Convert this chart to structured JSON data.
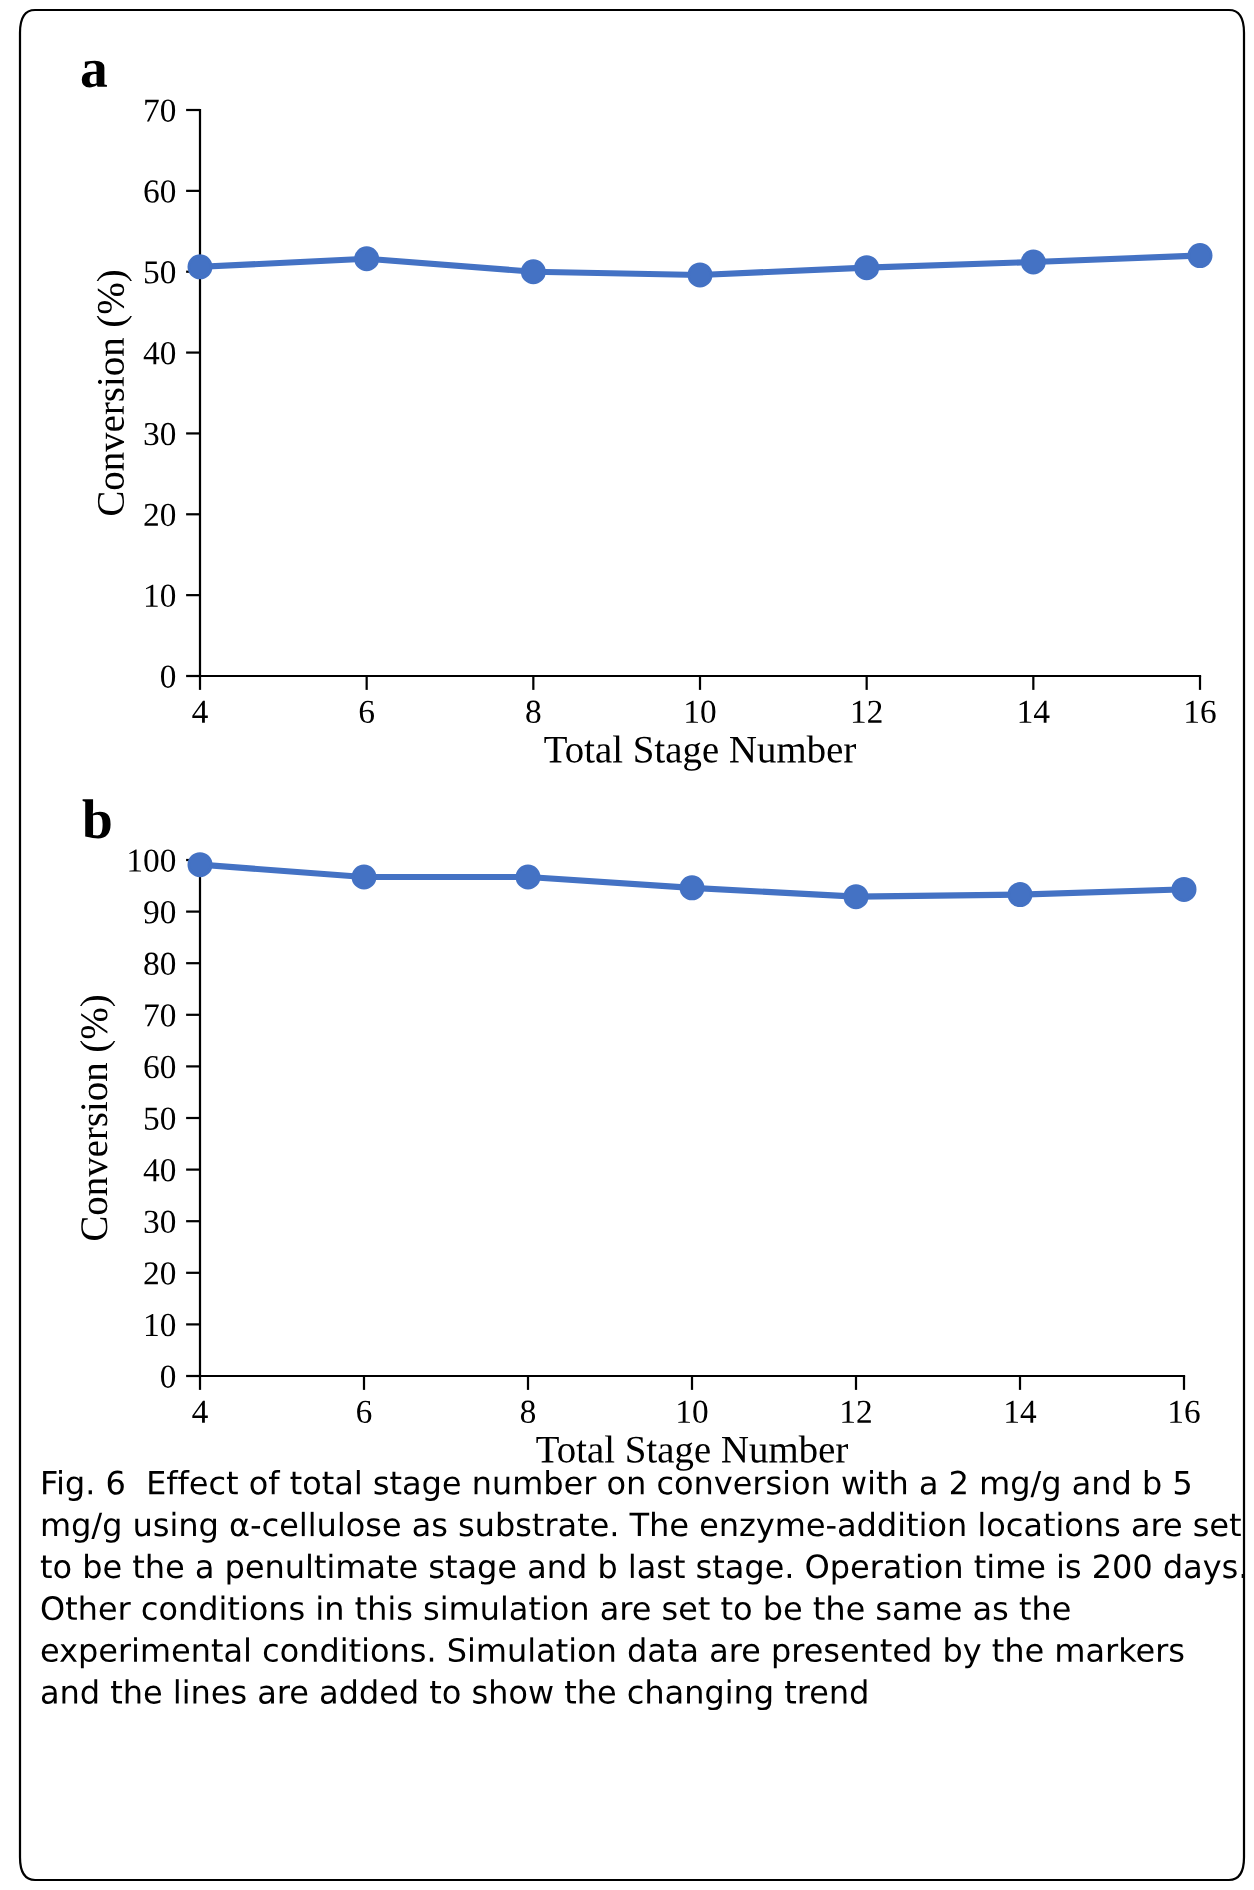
{
  "chart_data": [
    {
      "type": "line",
      "title": "a",
      "xlabel": "Total Stage Number",
      "ylabel": "Conversion (%)",
      "x": [
        4,
        6,
        8,
        10,
        12,
        14,
        16
      ],
      "series": [
        {
          "color": "#4472c4",
          "values": [
            50.6,
            51.6,
            50.0,
            49.6,
            50.5,
            51.2,
            52.0
          ]
        }
      ],
      "xlim": [
        4,
        16
      ],
      "xticks": [
        4,
        6,
        8,
        10,
        12,
        14,
        16
      ],
      "ylim": [
        0,
        70
      ],
      "yticks": [
        0,
        10,
        20,
        30,
        40,
        50,
        60,
        70
      ],
      "marker": "circle",
      "line_style": "solid",
      "grid": false,
      "legend": false
    },
    {
      "type": "line",
      "title": "b",
      "xlabel": "Total Stage Number",
      "ylabel": "Conversion (%)",
      "x": [
        4,
        6,
        8,
        10,
        12,
        14,
        16
      ],
      "series": [
        {
          "color": "#4472c4",
          "values": [
            99.1,
            96.7,
            96.7,
            94.6,
            92.9,
            93.3,
            94.3
          ]
        }
      ],
      "xlim": [
        4,
        16
      ],
      "xticks": [
        4,
        6,
        8,
        10,
        12,
        14,
        16
      ],
      "ylim": [
        0,
        100
      ],
      "yticks": [
        0,
        10,
        20,
        30,
        40,
        50,
        60,
        70,
        80,
        90,
        100
      ],
      "marker": "circle",
      "line_style": "solid",
      "grid": false,
      "legend": false,
      "annotations": [
        "Fig. 6  Effect of total stage number on conversion with a 2 mg/g and b 5 mg/g using α-cellulose as substrate. The enzyme-addition locations are set to be the a penultimate stage and b last stage. Operation time is 200 days. Other conditions in this simulation are set to be the same as the experimental conditions. Simulation data are presented by the markers and the lines are added to show the changing trend"
      ]
    }
  ]
}
